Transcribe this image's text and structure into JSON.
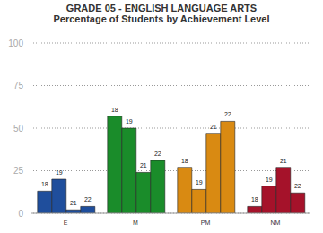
{
  "chart_data": {
    "type": "bar",
    "title": "GRADE 05 - ENGLISH LANGUAGE ARTS",
    "subtitle": "Percentage of Students by Achievement Level",
    "categories": [
      "E",
      "M",
      "PM",
      "NM"
    ],
    "series": [
      {
        "name": "18",
        "values": [
          13,
          57,
          27,
          4
        ]
      },
      {
        "name": "19",
        "values": [
          20,
          50,
          14,
          16
        ]
      },
      {
        "name": "21",
        "values": [
          2,
          24,
          47,
          27
        ]
      },
      {
        "name": "22",
        "values": [
          4,
          31,
          54,
          12
        ]
      }
    ],
    "colors": [
      "#1f4e9c",
      "#1a8c2a",
      "#d98a12",
      "#a5122a"
    ],
    "ylim": [
      0,
      100
    ],
    "yticks": [
      0,
      25,
      50,
      75,
      100
    ],
    "grid": true,
    "data_labels": true
  }
}
